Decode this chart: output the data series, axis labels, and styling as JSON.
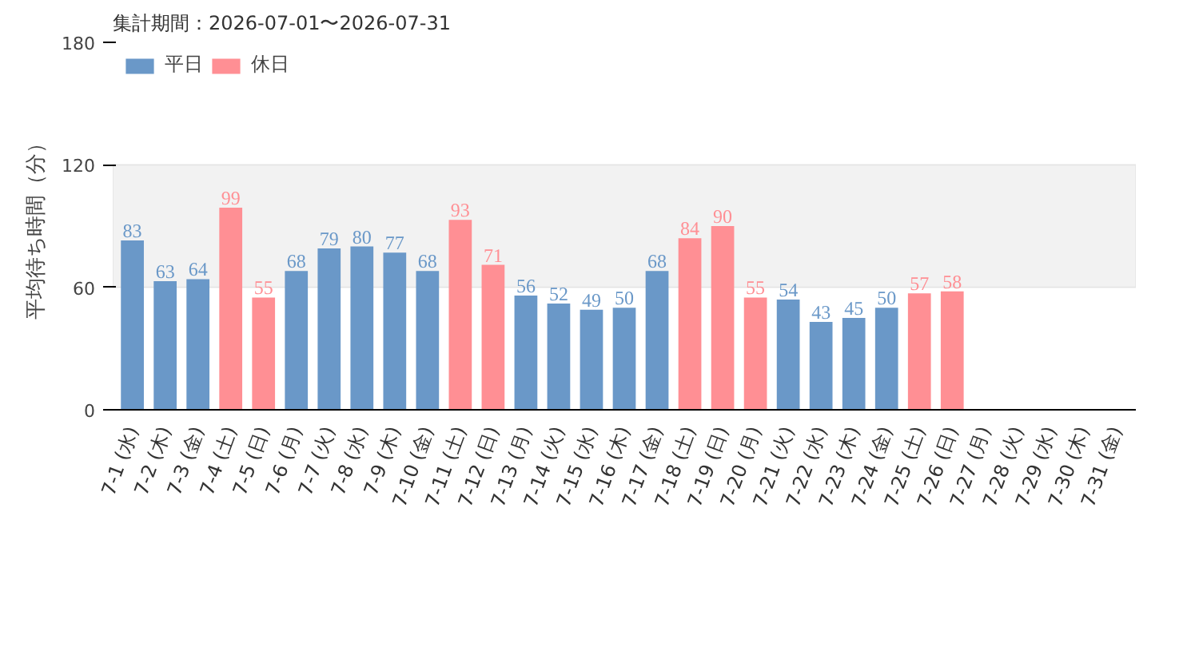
{
  "chart_data": {
    "type": "bar",
    "title": "集計期間：2026-07-01〜2026-07-31",
    "ylabel": "平均待ち時間（分）",
    "categories": [
      "7-1 (水)",
      "7-2 (木)",
      "7-3 (金)",
      "7-4 (土)",
      "7-5 (日)",
      "7-6 (月)",
      "7-7 (火)",
      "7-8 (水)",
      "7-9 (木)",
      "7-10 (金)",
      "7-11 (土)",
      "7-12 (日)",
      "7-13 (月)",
      "7-14 (火)",
      "7-15 (水)",
      "7-16 (木)",
      "7-17 (金)",
      "7-18 (土)",
      "7-19 (日)",
      "7-20 (月)",
      "7-21 (火)",
      "7-22 (水)",
      "7-23 (木)",
      "7-24 (金)",
      "7-25 (土)",
      "7-26 (日)",
      "7-27 (月)",
      "7-28 (火)",
      "7-29 (水)",
      "7-30 (木)",
      "7-31 (金)"
    ],
    "series": [
      {
        "name": "平日",
        "color": "#6a98c8",
        "values": [
          83,
          63,
          64,
          null,
          null,
          68,
          79,
          80,
          77,
          68,
          null,
          null,
          56,
          52,
          49,
          50,
          68,
          null,
          null,
          null,
          54,
          43,
          45,
          50,
          null,
          null,
          null,
          null,
          null,
          null,
          null
        ]
      },
      {
        "name": "休日",
        "color": "#ff8f94",
        "values": [
          null,
          null,
          null,
          99,
          55,
          null,
          null,
          null,
          null,
          null,
          93,
          71,
          null,
          null,
          null,
          null,
          null,
          84,
          90,
          55,
          null,
          null,
          null,
          null,
          57,
          58,
          null,
          null,
          null,
          null,
          null
        ]
      }
    ],
    "ylim": [
      0,
      180
    ],
    "yticks": [
      0,
      60,
      120,
      180
    ],
    "grid": "y",
    "bands": [
      {
        "axis": "y",
        "from": 60,
        "to": 120,
        "color": "#f2f2f2"
      }
    ],
    "data_labels": true,
    "legend": "top left"
  }
}
